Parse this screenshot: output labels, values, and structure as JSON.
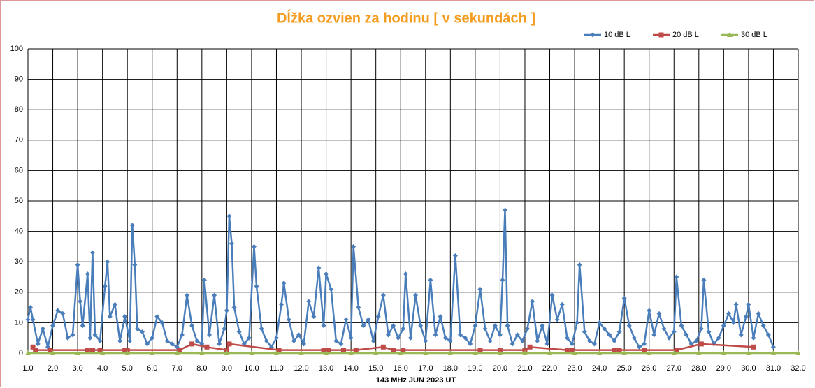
{
  "chart_data": {
    "type": "line",
    "title": "Dĺžka ozvien za hodinu [ v sekundách ]",
    "x_label": "143 MHz JUN  2023  UT",
    "xlim": [
      1,
      32
    ],
    "ylim": [
      0,
      100
    ],
    "xticks": [
      {
        "value": 1,
        "label": "1.0"
      },
      {
        "value": 2,
        "label": "2.0"
      },
      {
        "value": 3,
        "label": "3.0"
      },
      {
        "value": 4,
        "label": "4.0"
      },
      {
        "value": 5,
        "label": "5.0"
      },
      {
        "value": 6,
        "label": "6.0"
      },
      {
        "value": 7,
        "label": "7.0"
      },
      {
        "value": 8,
        "label": "8.0"
      },
      {
        "value": 9,
        "label": "9.0"
      },
      {
        "value": 10,
        "label": "10.0"
      },
      {
        "value": 11,
        "label": "11.0"
      },
      {
        "value": 12,
        "label": "12.0"
      },
      {
        "value": 13,
        "label": "13.0"
      },
      {
        "value": 14,
        "label": "14.0"
      },
      {
        "value": 15,
        "label": "15.0"
      },
      {
        "value": 16,
        "label": "16.0"
      },
      {
        "value": 17,
        "label": "17.0"
      },
      {
        "value": 18,
        "label": "18.0"
      },
      {
        "value": 19,
        "label": "19.0"
      },
      {
        "value": 20,
        "label": "20.0"
      },
      {
        "value": 21,
        "label": "21.0"
      },
      {
        "value": 22,
        "label": "22.0"
      },
      {
        "value": 23,
        "label": "23.0"
      },
      {
        "value": 24,
        "label": "24.0"
      },
      {
        "value": 25,
        "label": "25.0"
      },
      {
        "value": 26,
        "label": "26.0"
      },
      {
        "value": 27,
        "label": "27.0"
      },
      {
        "value": 28,
        "label": "28.0"
      },
      {
        "value": 29,
        "label": "29.0"
      },
      {
        "value": 30,
        "label": "30.0"
      },
      {
        "value": 31,
        "label": "31.0"
      },
      {
        "value": 32,
        "label": "32.0"
      }
    ],
    "yticks": [
      0,
      10,
      20,
      30,
      40,
      50,
      60,
      70,
      80,
      90,
      100
    ],
    "grid": true,
    "legend": "top-right",
    "series": [
      {
        "name": "10 dB L",
        "color": "#4a7ebb",
        "marker": "diamond",
        "x": [
          1.0,
          1.1,
          1.2,
          1.4,
          1.6,
          1.8,
          2.0,
          2.2,
          2.4,
          2.6,
          2.8,
          3.0,
          3.1,
          3.2,
          3.4,
          3.5,
          3.6,
          3.7,
          3.9,
          4.1,
          4.2,
          4.3,
          4.5,
          4.7,
          4.9,
          5.1,
          5.2,
          5.3,
          5.4,
          5.6,
          5.8,
          6.0,
          6.2,
          6.4,
          6.6,
          6.8,
          7.0,
          7.2,
          7.4,
          7.6,
          7.8,
          8.0,
          8.1,
          8.3,
          8.5,
          8.7,
          8.9,
          9.0,
          9.1,
          9.2,
          9.3,
          9.5,
          9.7,
          9.9,
          10.1,
          10.2,
          10.4,
          10.6,
          10.8,
          11.0,
          11.2,
          11.3,
          11.5,
          11.7,
          11.9,
          12.1,
          12.3,
          12.5,
          12.7,
          12.9,
          13.0,
          13.2,
          13.4,
          13.6,
          13.8,
          14.0,
          14.1,
          14.3,
          14.5,
          14.7,
          14.9,
          15.1,
          15.3,
          15.5,
          15.7,
          15.9,
          16.1,
          16.2,
          16.4,
          16.6,
          16.8,
          17.0,
          17.2,
          17.4,
          17.6,
          17.8,
          18.0,
          18.2,
          18.4,
          18.6,
          18.8,
          19.0,
          19.2,
          19.4,
          19.6,
          19.8,
          20.0,
          20.1,
          20.2,
          20.3,
          20.5,
          20.7,
          20.9,
          21.1,
          21.3,
          21.5,
          21.7,
          21.9,
          22.1,
          22.3,
          22.5,
          22.7,
          22.9,
          23.1,
          23.2,
          23.4,
          23.6,
          23.8,
          24.0,
          24.2,
          24.4,
          24.6,
          24.8,
          25.0,
          25.2,
          25.4,
          25.6,
          25.8,
          26.0,
          26.2,
          26.4,
          26.6,
          26.8,
          27.0,
          27.1,
          27.3,
          27.5,
          27.7,
          27.9,
          28.1,
          28.2,
          28.4,
          28.6,
          28.8,
          29.0,
          29.2,
          29.4,
          29.5,
          29.7,
          29.9,
          30.0,
          30.2,
          30.4,
          30.6,
          30.8,
          31.0
        ],
        "values": [
          11,
          15,
          11,
          3,
          8,
          2,
          9,
          14,
          13,
          5,
          6,
          29,
          17,
          9,
          26,
          5,
          33,
          6,
          4,
          22,
          30,
          12,
          16,
          4,
          12,
          4,
          42,
          29,
          8,
          7,
          3,
          5,
          12,
          10,
          4,
          3,
          2,
          6,
          19,
          9,
          4,
          3,
          24,
          6,
          19,
          3,
          8,
          14,
          45,
          36,
          15,
          7,
          3,
          5,
          35,
          22,
          8,
          4,
          2,
          5,
          16,
          23,
          11,
          4,
          6,
          3,
          17,
          12,
          28,
          9,
          26,
          21,
          4,
          3,
          11,
          5,
          35,
          15,
          9,
          11,
          4,
          12,
          19,
          6,
          9,
          5,
          8,
          26,
          5,
          19,
          9,
          4,
          24,
          6,
          12,
          5,
          4,
          32,
          6,
          5,
          3,
          9,
          21,
          8,
          4,
          9,
          6,
          24,
          47,
          9,
          3,
          6,
          4,
          8,
          17,
          4,
          9,
          3,
          19,
          11,
          16,
          5,
          3,
          10,
          29,
          7,
          4,
          3,
          10,
          8,
          6,
          4,
          7,
          18,
          9,
          5,
          2,
          3,
          14,
          6,
          13,
          8,
          5,
          7,
          25,
          9,
          6,
          3,
          4,
          8,
          24,
          7,
          3,
          5,
          9,
          13,
          10,
          16,
          6,
          12,
          16,
          5,
          13,
          9,
          6,
          2
        ]
      },
      {
        "name": "20 dB L",
        "color": "#be4b48",
        "marker": "square",
        "x": [
          1.2,
          1.3,
          1.9,
          3.4,
          3.6,
          3.9,
          4.9,
          5.0,
          7.1,
          7.6,
          8.2,
          9.0,
          9.1,
          11.1,
          12.9,
          13.1,
          13.7,
          14.2,
          15.3,
          15.7,
          16.1,
          19.2,
          20.0,
          21.0,
          21.2,
          22.7,
          22.9,
          24.6,
          24.8,
          25.8,
          27.1,
          28.1,
          30.2
        ],
        "values": [
          2,
          1,
          1,
          1,
          1,
          1,
          1,
          1,
          1,
          3,
          2,
          1,
          3,
          1,
          1,
          1,
          1,
          1,
          2,
          1,
          1,
          1,
          1,
          1,
          2,
          1,
          1,
          1,
          1,
          1,
          1,
          3,
          2
        ]
      },
      {
        "name": "30 dB L",
        "color": "#98b954",
        "marker": "triangle",
        "x": [
          1,
          2,
          3,
          4,
          5,
          6,
          7,
          8,
          9,
          10,
          11,
          12,
          13,
          14,
          15,
          16,
          17,
          18,
          19,
          20,
          21,
          22,
          23,
          24,
          25,
          26,
          27,
          28,
          29,
          30,
          31,
          32
        ],
        "values": [
          0,
          0,
          0,
          0,
          0,
          0,
          0,
          0,
          0,
          0,
          0,
          0,
          0,
          0,
          0,
          0,
          0,
          0,
          0,
          0,
          0,
          0,
          0,
          0,
          0,
          0,
          0,
          0,
          0,
          0,
          0,
          0
        ]
      }
    ]
  }
}
